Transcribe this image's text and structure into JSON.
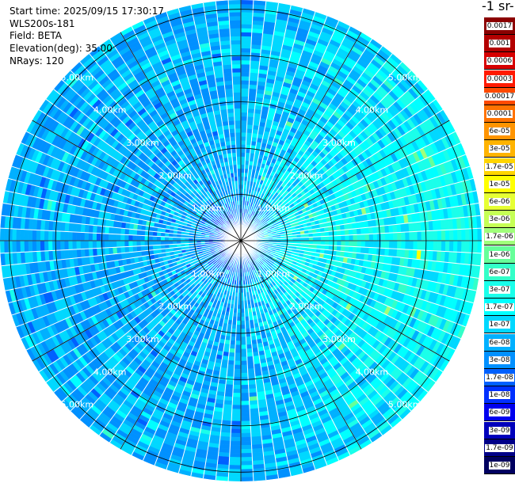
{
  "info": {
    "start_time": "Start time: 2025/09/15 17:30:17",
    "instrument": "WLS200s-181",
    "field": "Field: BETA",
    "elevation": "Elevation(deg): 35.00",
    "nrays": "NRays: 120"
  },
  "colorbar": {
    "unit_fragment": "-1 sr-",
    "levels": [
      {
        "label": "0.0017",
        "color": "#8b0000"
      },
      {
        "label": "0.001",
        "color": "#b30000"
      },
      {
        "label": "0.0006",
        "color": "#d70000"
      },
      {
        "label": "0.0003",
        "color": "#ff1a00"
      },
      {
        "label": "0.00017",
        "color": "#ff4a00"
      },
      {
        "label": "0.0001",
        "color": "#ff7200"
      },
      {
        "label": "6e-05",
        "color": "#ff9400"
      },
      {
        "label": "3e-05",
        "color": "#ffb300"
      },
      {
        "label": "1.7e-05",
        "color": "#ffd500"
      },
      {
        "label": "1e-05",
        "color": "#ffff00"
      },
      {
        "label": "6e-06",
        "color": "#e6ff33"
      },
      {
        "label": "3e-06",
        "color": "#c5ff55"
      },
      {
        "label": "1.7e-06",
        "color": "#a0ff7a"
      },
      {
        "label": "1e-06",
        "color": "#66ff99"
      },
      {
        "label": "6e-07",
        "color": "#33ffc8"
      },
      {
        "label": "3e-07",
        "color": "#1affea"
      },
      {
        "label": "1.7e-07",
        "color": "#00ffff"
      },
      {
        "label": "1e-07",
        "color": "#00d8ff"
      },
      {
        "label": "6e-08",
        "color": "#00b0ff"
      },
      {
        "label": "3e-08",
        "color": "#0090ff"
      },
      {
        "label": "1.7e-08",
        "color": "#0060ff"
      },
      {
        "label": "1e-08",
        "color": "#0030ff"
      },
      {
        "label": "6e-09",
        "color": "#0000ee"
      },
      {
        "label": "3e-09",
        "color": "#0000bb"
      },
      {
        "label": "1.7e-09",
        "color": "#000088"
      },
      {
        "label": "1e-09",
        "color": "#000060"
      }
    ]
  },
  "chart_data": {
    "type": "heatmap",
    "projection": "polar-ppi",
    "field": "BETA",
    "elevation_deg": 35.0,
    "n_rays": 120,
    "range_max_km": 5.2,
    "range_rings": [
      {
        "km": 1.0,
        "label": "1.00km"
      },
      {
        "km": 2.0,
        "label": "2.00km"
      },
      {
        "km": 3.0,
        "label": "3.00km"
      },
      {
        "km": 4.0,
        "label": "4.00km"
      },
      {
        "km": 5.0,
        "label": "5.00km"
      }
    ],
    "azimuth_lines_deg": [
      0,
      30,
      60,
      90,
      120,
      150,
      180,
      210,
      240,
      270,
      300,
      330
    ],
    "dominant_values": "1e-08 to 1e-07",
    "near_range_values": "3e-09 to 1.7e-08",
    "far_east_values": "6e-08 to 6e-07",
    "colormap_colors": [
      "#000088",
      "#0000ee",
      "#0030ff",
      "#0060ff",
      "#0090ff",
      "#00b0ff",
      "#00d8ff",
      "#00ffff",
      "#1affea",
      "#33ffc8",
      "#66ff99",
      "#a0ff7a",
      "#ffff00"
    ]
  }
}
